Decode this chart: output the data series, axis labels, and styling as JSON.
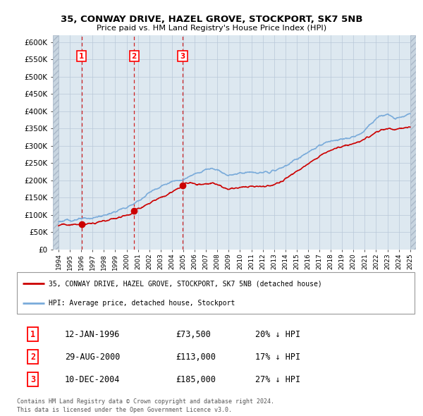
{
  "title_line1": "35, CONWAY DRIVE, HAZEL GROVE, STOCKPORT, SK7 5NB",
  "title_line2": "Price paid vs. HM Land Registry's House Price Index (HPI)",
  "ylabel_ticks": [
    "£0",
    "£50K",
    "£100K",
    "£150K",
    "£200K",
    "£250K",
    "£300K",
    "£350K",
    "£400K",
    "£450K",
    "£500K",
    "£550K",
    "£600K"
  ],
  "ytick_values": [
    0,
    50000,
    100000,
    150000,
    200000,
    250000,
    300000,
    350000,
    400000,
    450000,
    500000,
    550000,
    600000
  ],
  "xlim": [
    1993.5,
    2025.5
  ],
  "ylim": [
    0,
    620000
  ],
  "purchases": [
    {
      "num": 1,
      "year": 1996.03,
      "price": 73500,
      "label": "12-JAN-1996",
      "pct": "20%",
      "dir": "↓"
    },
    {
      "num": 2,
      "year": 2000.66,
      "price": 113000,
      "label": "29-AUG-2000",
      "pct": "17%",
      "dir": "↓"
    },
    {
      "num": 3,
      "year": 2004.94,
      "price": 185000,
      "label": "10-DEC-2004",
      "pct": "27%",
      "dir": "↓"
    }
  ],
  "hpi_color": "#7aabda",
  "price_color": "#cc0000",
  "vline_color": "#cc0000",
  "bg_color": "#dde8f0",
  "grid_color": "#b8c8d8",
  "legend_label_price": "35, CONWAY DRIVE, HAZEL GROVE, STOCKPORT, SK7 5NB (detached house)",
  "legend_label_hpi": "HPI: Average price, detached house, Stockport",
  "footer1": "Contains HM Land Registry data © Crown copyright and database right 2024.",
  "footer2": "This data is licensed under the Open Government Licence v3.0.",
  "hpi_base_pts": [
    [
      1994.0,
      82000
    ],
    [
      1994.5,
      83000
    ],
    [
      1995.0,
      85000
    ],
    [
      1995.5,
      87000
    ],
    [
      1996.0,
      88000
    ],
    [
      1996.5,
      89500
    ],
    [
      1997.0,
      92000
    ],
    [
      1997.5,
      95000
    ],
    [
      1998.0,
      99000
    ],
    [
      1998.5,
      104000
    ],
    [
      1999.0,
      109000
    ],
    [
      1999.5,
      116000
    ],
    [
      2000.0,
      122000
    ],
    [
      2000.5,
      130000
    ],
    [
      2001.0,
      140000
    ],
    [
      2001.5,
      152000
    ],
    [
      2002.0,
      165000
    ],
    [
      2002.5,
      175000
    ],
    [
      2003.0,
      183000
    ],
    [
      2003.5,
      190000
    ],
    [
      2004.0,
      196000
    ],
    [
      2004.5,
      200000
    ],
    [
      2005.0,
      205000
    ],
    [
      2005.5,
      210000
    ],
    [
      2006.0,
      218000
    ],
    [
      2006.5,
      225000
    ],
    [
      2007.0,
      232000
    ],
    [
      2007.5,
      236000
    ],
    [
      2008.0,
      232000
    ],
    [
      2008.5,
      222000
    ],
    [
      2009.0,
      215000
    ],
    [
      2009.5,
      218000
    ],
    [
      2010.0,
      222000
    ],
    [
      2010.5,
      224000
    ],
    [
      2011.0,
      223000
    ],
    [
      2011.5,
      222000
    ],
    [
      2012.0,
      222000
    ],
    [
      2012.5,
      224000
    ],
    [
      2013.0,
      228000
    ],
    [
      2013.5,
      234000
    ],
    [
      2014.0,
      242000
    ],
    [
      2014.5,
      252000
    ],
    [
      2015.0,
      262000
    ],
    [
      2015.5,
      272000
    ],
    [
      2016.0,
      280000
    ],
    [
      2016.5,
      290000
    ],
    [
      2017.0,
      300000
    ],
    [
      2017.5,
      308000
    ],
    [
      2018.0,
      314000
    ],
    [
      2018.5,
      318000
    ],
    [
      2019.0,
      320000
    ],
    [
      2019.5,
      323000
    ],
    [
      2020.0,
      325000
    ],
    [
      2020.5,
      332000
    ],
    [
      2021.0,
      345000
    ],
    [
      2021.5,
      362000
    ],
    [
      2022.0,
      378000
    ],
    [
      2022.5,
      388000
    ],
    [
      2023.0,
      390000
    ],
    [
      2023.5,
      385000
    ],
    [
      2024.0,
      383000
    ],
    [
      2024.5,
      388000
    ],
    [
      2025.0,
      395000
    ]
  ],
  "price_base_pts": [
    [
      1994.0,
      72000
    ],
    [
      1994.5,
      72500
    ],
    [
      1995.0,
      72000
    ],
    [
      1995.5,
      72500
    ],
    [
      1996.03,
      73500
    ],
    [
      1996.5,
      74500
    ],
    [
      1997.0,
      76000
    ],
    [
      1997.5,
      79000
    ],
    [
      1998.0,
      83000
    ],
    [
      1998.5,
      87000
    ],
    [
      1999.0,
      90000
    ],
    [
      1999.5,
      96000
    ],
    [
      2000.0,
      100000
    ],
    [
      2000.5,
      105000
    ],
    [
      2000.66,
      113000
    ],
    [
      2001.0,
      118000
    ],
    [
      2001.5,
      126000
    ],
    [
      2002.0,
      135000
    ],
    [
      2002.5,
      143000
    ],
    [
      2003.0,
      150000
    ],
    [
      2003.5,
      158000
    ],
    [
      2004.0,
      167000
    ],
    [
      2004.5,
      175000
    ],
    [
      2004.94,
      185000
    ],
    [
      2005.0,
      190000
    ],
    [
      2005.5,
      193000
    ],
    [
      2006.0,
      190000
    ],
    [
      2006.5,
      188000
    ],
    [
      2007.0,
      190000
    ],
    [
      2007.5,
      192000
    ],
    [
      2008.0,
      188000
    ],
    [
      2008.5,
      181000
    ],
    [
      2009.0,
      175000
    ],
    [
      2009.5,
      177000
    ],
    [
      2010.0,
      180000
    ],
    [
      2010.5,
      182000
    ],
    [
      2011.0,
      183000
    ],
    [
      2011.5,
      183000
    ],
    [
      2012.0,
      182000
    ],
    [
      2012.5,
      184000
    ],
    [
      2013.0,
      188000
    ],
    [
      2013.5,
      195000
    ],
    [
      2014.0,
      204000
    ],
    [
      2014.5,
      215000
    ],
    [
      2015.0,
      226000
    ],
    [
      2015.5,
      238000
    ],
    [
      2016.0,
      248000
    ],
    [
      2016.5,
      259000
    ],
    [
      2017.0,
      270000
    ],
    [
      2017.5,
      279000
    ],
    [
      2018.0,
      287000
    ],
    [
      2018.5,
      293000
    ],
    [
      2019.0,
      298000
    ],
    [
      2019.5,
      302000
    ],
    [
      2020.0,
      305000
    ],
    [
      2020.5,
      311000
    ],
    [
      2021.0,
      320000
    ],
    [
      2021.5,
      330000
    ],
    [
      2022.0,
      340000
    ],
    [
      2022.5,
      347000
    ],
    [
      2023.0,
      350000
    ],
    [
      2023.5,
      348000
    ],
    [
      2024.0,
      350000
    ],
    [
      2024.5,
      352000
    ],
    [
      2025.0,
      355000
    ]
  ]
}
